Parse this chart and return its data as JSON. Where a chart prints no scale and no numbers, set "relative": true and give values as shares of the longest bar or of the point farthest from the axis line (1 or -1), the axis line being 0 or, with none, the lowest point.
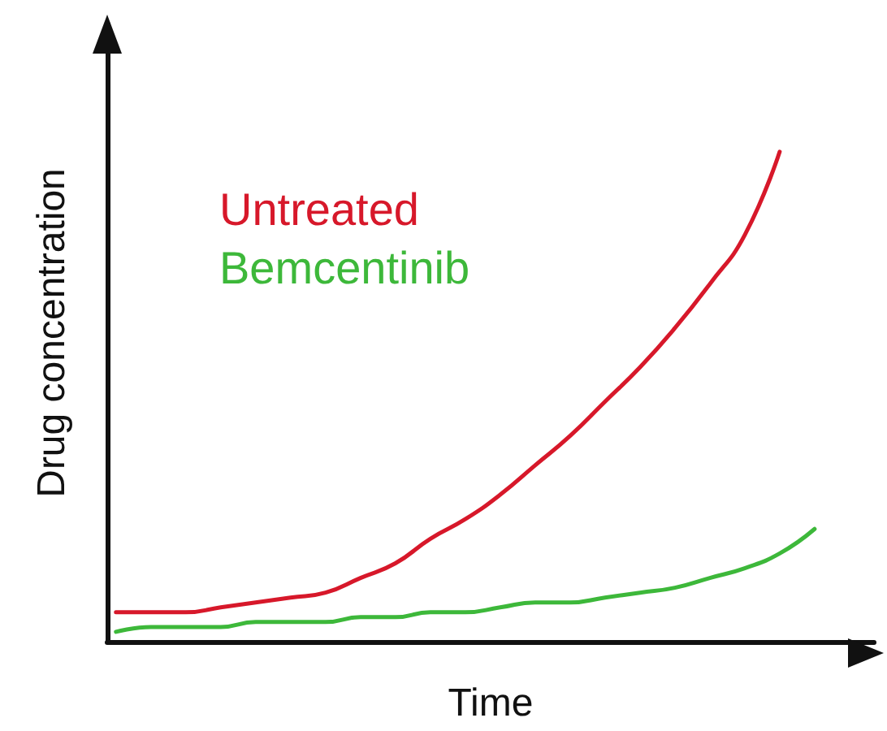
{
  "chart_data": {
    "type": "line",
    "relative": true,
    "xlabel": "Time",
    "ylabel": "Drug concentration",
    "legend": "top left",
    "grid": false,
    "marker": "none",
    "line_style": "solid",
    "categories": [
      null,
      null,
      null,
      null,
      null,
      null,
      null,
      null,
      null,
      null,
      null,
      null,
      null,
      null,
      null,
      null,
      null,
      null,
      null,
      null,
      null
    ],
    "series": [
      {
        "name": "Untreated",
        "color": "#d7182a",
        "values": [
          0.06,
          0.06,
          0.06,
          0.07,
          0.08,
          0.09,
          0.1,
          0.13,
          0.16,
          0.21,
          0.25,
          0.3,
          0.36,
          0.42,
          0.49,
          0.56,
          0.64,
          0.73,
          0.83,
          1,
          null
        ]
      },
      {
        "name": "Bemcentinib",
        "color": "#3db83a",
        "values": [
          0.02,
          0.03,
          0.03,
          0.03,
          0.04,
          0.04,
          0.04,
          0.05,
          0.05,
          0.06,
          0.06,
          0.07,
          0.08,
          0.08,
          0.09,
          0.1,
          0.11,
          0.13,
          0.15,
          0.18,
          0.23
        ]
      }
    ]
  }
}
